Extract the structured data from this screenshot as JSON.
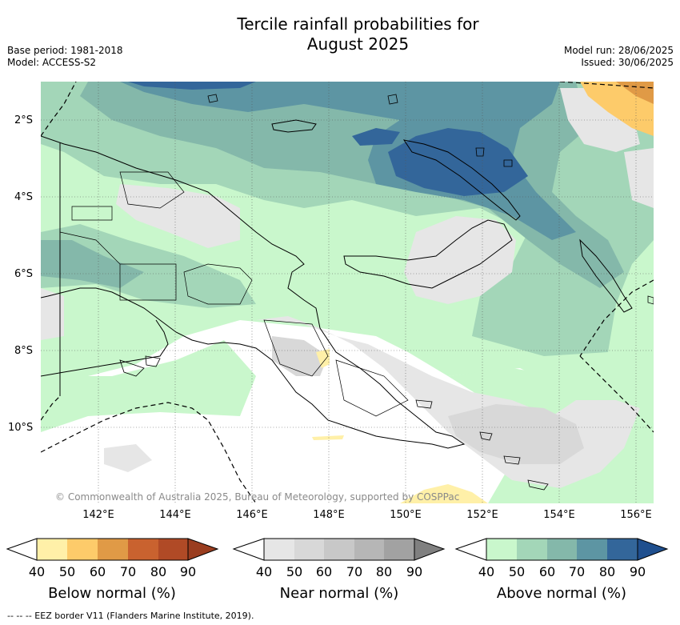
{
  "title_line1": "Tercile rainfall probabilities for",
  "title_line2": "August 2025",
  "base_period": "Base period: 1981-2018",
  "model": "Model: ACCESS-S2",
  "model_run": "Model run: 28/06/2025",
  "issued": "Issued: 30/06/2025",
  "lat_labels": [
    "2°S",
    "4°S",
    "6°S",
    "8°S",
    "10°S"
  ],
  "lon_labels": [
    "142°E",
    "144°E",
    "146°E",
    "148°E",
    "150°E",
    "152°E",
    "154°E",
    "156°E"
  ],
  "copyright": "© Commonwealth of Australia 2025, Bureau of Meteorology, supported by COSPPac",
  "colorbars": [
    {
      "title": "Below normal (%)",
      "ticks": [
        "40",
        "50",
        "60",
        "70",
        "80",
        "90"
      ],
      "colors": [
        "#fff0a8",
        "#fdcb6a",
        "#e09a46",
        "#c9622f",
        "#b04a26",
        "#9a3d1f"
      ]
    },
    {
      "title": "Near normal (%)",
      "ticks": [
        "40",
        "50",
        "60",
        "70",
        "80",
        "90"
      ],
      "colors": [
        "#e6e6e6",
        "#d8d8d8",
        "#c8c8c8",
        "#b6b6b6",
        "#a2a2a2",
        "#808080"
      ]
    },
    {
      "title": "Above normal (%)",
      "ticks": [
        "40",
        "50",
        "60",
        "70",
        "80",
        "90"
      ],
      "colors": [
        "#c9f7cc",
        "#a3d6b8",
        "#84b8aa",
        "#5d95a3",
        "#33669a",
        "#1f4f8e"
      ]
    }
  ],
  "footnote": "-- -- -- EEZ border V11 (Flanders Marine Institute, 2019)."
}
